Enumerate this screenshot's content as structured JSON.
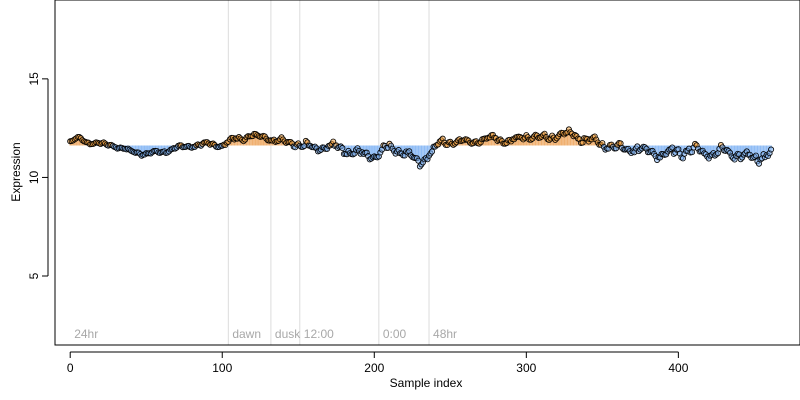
{
  "chart_data": {
    "type": "scatter",
    "title": "",
    "xlabel": "Sample index",
    "ylabel": "Expression",
    "xlim": [
      -10,
      480
    ],
    "ylim": [
      1.5,
      19.0
    ],
    "x_ticks": [
      0,
      100,
      200,
      300,
      400
    ],
    "y_ticks": [
      5,
      10,
      15
    ],
    "baseline": 11.62,
    "colors": {
      "point_fill_high": "#f0a040",
      "point_fill_low": "#7fb0ee",
      "bar_high": "#f0b070",
      "bar_low": "#8fbcf5",
      "phase_line": "#dcdcdc",
      "phase_text": "#a8a8a8",
      "point_stroke": "#000000"
    },
    "phases": [
      {
        "label": "24hr",
        "x": 0
      },
      {
        "label": "dawn",
        "x": 104
      },
      {
        "label": "dusk",
        "x": 132
      },
      {
        "label": "12:00",
        "x": 151
      },
      {
        "label": "0:00",
        "x": 203
      },
      {
        "label": "48hr",
        "x": 236
      }
    ],
    "series": [
      {
        "anchors_x": [
          0,
          6,
          10,
          20,
          30,
          40,
          50,
          60,
          70,
          80,
          90,
          100,
          106,
          112,
          120,
          130,
          140,
          150,
          160,
          170,
          180,
          190,
          200,
          210,
          220,
          225,
          230,
          236,
          245,
          260,
          270,
          280,
          290,
          300,
          310,
          320,
          330,
          340,
          350,
          360,
          370,
          380,
          390,
          400,
          410,
          420,
          430,
          440,
          450,
          460
        ],
        "anchors_y": [
          11.8,
          12.0,
          11.8,
          11.7,
          11.6,
          11.3,
          11.2,
          11.3,
          11.5,
          11.6,
          11.7,
          11.6,
          11.9,
          12.0,
          12.1,
          12.0,
          11.8,
          11.7,
          11.5,
          11.6,
          11.4,
          11.2,
          11.1,
          11.5,
          11.3,
          10.9,
          10.7,
          11.2,
          11.8,
          11.8,
          11.9,
          12.0,
          11.8,
          12.1,
          12.0,
          12.1,
          12.2,
          11.9,
          11.7,
          11.5,
          11.5,
          11.3,
          11.2,
          11.3,
          11.4,
          11.2,
          11.3,
          11.1,
          11.0,
          11.2
        ],
        "noise_amplitude": [
          0.08,
          0.1,
          0.1,
          0.1,
          0.12,
          0.12,
          0.12,
          0.12,
          0.12,
          0.12,
          0.12,
          0.12,
          0.14,
          0.16,
          0.18,
          0.2,
          0.24,
          0.28,
          0.3,
          0.3,
          0.3,
          0.32,
          0.3,
          0.3,
          0.3,
          0.3,
          0.28,
          0.26,
          0.22,
          0.2,
          0.22,
          0.24,
          0.24,
          0.24,
          0.24,
          0.26,
          0.26,
          0.26,
          0.26,
          0.28,
          0.3,
          0.36,
          0.36,
          0.36,
          0.36,
          0.36,
          0.36,
          0.34,
          0.34,
          0.32
        ],
        "n_points": 462
      }
    ]
  }
}
